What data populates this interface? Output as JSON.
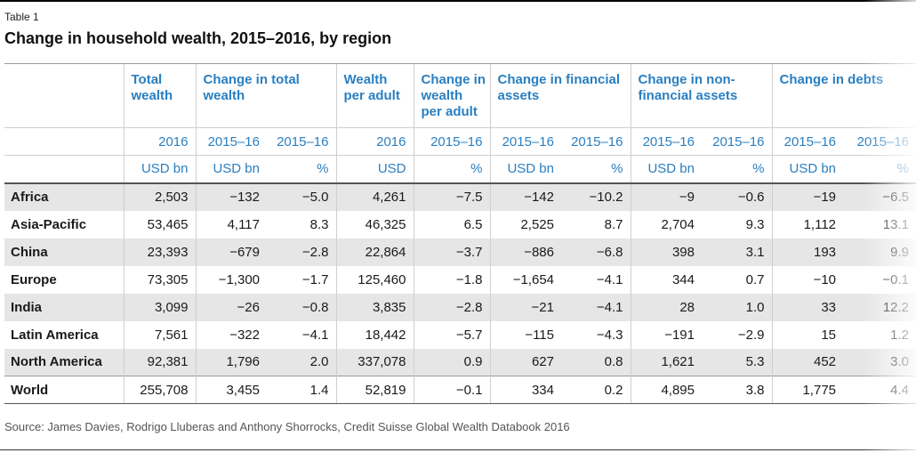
{
  "table_label": "Table 1",
  "title": "Change in household wealth, 2015–2016, by region",
  "groups": [
    "",
    "Total wealth",
    "Change in total wealth",
    "Wealth per adult",
    "Change in wealth per adult",
    "Change in financial assets",
    "Change in non-financial assets",
    "Change in debts"
  ],
  "years": [
    "2016",
    "2015–16",
    "2015–16",
    "2016",
    "2015–16",
    "2015–16",
    "2015–16",
    "2015–16",
    "2015–16",
    "2015–16",
    "2015–16"
  ],
  "units": [
    "USD bn",
    "USD bn",
    "%",
    "USD",
    "%",
    "USD bn",
    "%",
    "USD bn",
    "%",
    "USD bn",
    "%"
  ],
  "rows": [
    {
      "region": "Africa",
      "values": [
        "2,503",
        "−132",
        "−5.0",
        "4,261",
        "−7.5",
        "−142",
        "−10.2",
        "−9",
        "−0.6",
        "−19",
        "−6.5"
      ]
    },
    {
      "region": "Asia-Pacific",
      "values": [
        "53,465",
        "4,117",
        "8.3",
        "46,325",
        "6.5",
        "2,525",
        "8.7",
        "2,704",
        "9.3",
        "1,112",
        "13.1"
      ]
    },
    {
      "region": "China",
      "values": [
        "23,393",
        "−679",
        "−2.8",
        "22,864",
        "−3.7",
        "−886",
        "−6.8",
        "398",
        "3.1",
        "193",
        "9.9"
      ]
    },
    {
      "region": "Europe",
      "values": [
        "73,305",
        "−1,300",
        "−1.7",
        "125,460",
        "−1.8",
        "−1,654",
        "−4.1",
        "344",
        "0.7",
        "−10",
        "−0.1"
      ]
    },
    {
      "region": "India",
      "values": [
        "3,099",
        "−26",
        "−0.8",
        "3,835",
        "−2.8",
        "−21",
        "−4.1",
        "28",
        "1.0",
        "33",
        "12.2"
      ]
    },
    {
      "region": "Latin America",
      "values": [
        "7,561",
        "−322",
        "−4.1",
        "18,442",
        "−5.7",
        "−115",
        "−4.3",
        "−191",
        "−2.9",
        "15",
        "1.2"
      ]
    },
    {
      "region": "North America",
      "values": [
        "92,381",
        "1,796",
        "2.0",
        "337,078",
        "0.9",
        "627",
        "0.8",
        "1,621",
        "5.3",
        "452",
        "3.0"
      ]
    },
    {
      "region": "World",
      "values": [
        "255,708",
        "3,455",
        "1.4",
        "52,819",
        "−0.1",
        "334",
        "0.2",
        "4,895",
        "3.8",
        "1,775",
        "4.4"
      ]
    }
  ],
  "source": "Source: James Davies, Rodrigo Lluberas and Anthony Shorrocks, Credit Suisse Global Wealth Databook 2016",
  "colors": {
    "header_text": "#2a7fc1",
    "shaded_row": "#e6e6e6"
  }
}
